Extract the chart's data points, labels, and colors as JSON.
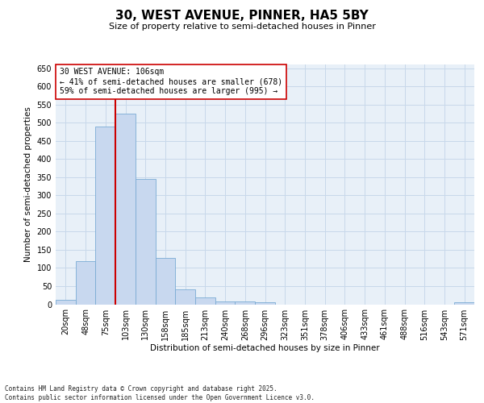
{
  "title": "30, WEST AVENUE, PINNER, HA5 5BY",
  "subtitle": "Size of property relative to semi-detached houses in Pinner",
  "xlabel": "Distribution of semi-detached houses by size in Pinner",
  "ylabel": "Number of semi-detached properties",
  "categories": [
    "20sqm",
    "48sqm",
    "75sqm",
    "103sqm",
    "130sqm",
    "158sqm",
    "185sqm",
    "213sqm",
    "240sqm",
    "268sqm",
    "296sqm",
    "323sqm",
    "351sqm",
    "378sqm",
    "406sqm",
    "433sqm",
    "461sqm",
    "488sqm",
    "516sqm",
    "543sqm",
    "571sqm"
  ],
  "values": [
    12,
    118,
    490,
    525,
    345,
    127,
    42,
    18,
    8,
    8,
    5,
    0,
    0,
    0,
    0,
    0,
    0,
    0,
    0,
    0,
    5
  ],
  "bar_color": "#c8d8ef",
  "bar_edge_color": "#7aabd4",
  "grid_color": "#c8d8ea",
  "background_color": "#e8f0f8",
  "vline_x": 2.5,
  "vline_color": "#cc0000",
  "annotation_text": "30 WEST AVENUE: 106sqm\n← 41% of semi-detached houses are smaller (678)\n59% of semi-detached houses are larger (995) →",
  "annotation_box_color": "#ffffff",
  "annotation_box_edge": "#cc0000",
  "footer": "Contains HM Land Registry data © Crown copyright and database right 2025.\nContains public sector information licensed under the Open Government Licence v3.0.",
  "ylim": [
    0,
    660
  ],
  "yticks": [
    0,
    50,
    100,
    150,
    200,
    250,
    300,
    350,
    400,
    450,
    500,
    550,
    600,
    650
  ],
  "title_fontsize": 11,
  "subtitle_fontsize": 8,
  "ylabel_fontsize": 7.5,
  "xlabel_fontsize": 7.5,
  "tick_fontsize": 7,
  "annotation_fontsize": 7,
  "footer_fontsize": 5.5
}
